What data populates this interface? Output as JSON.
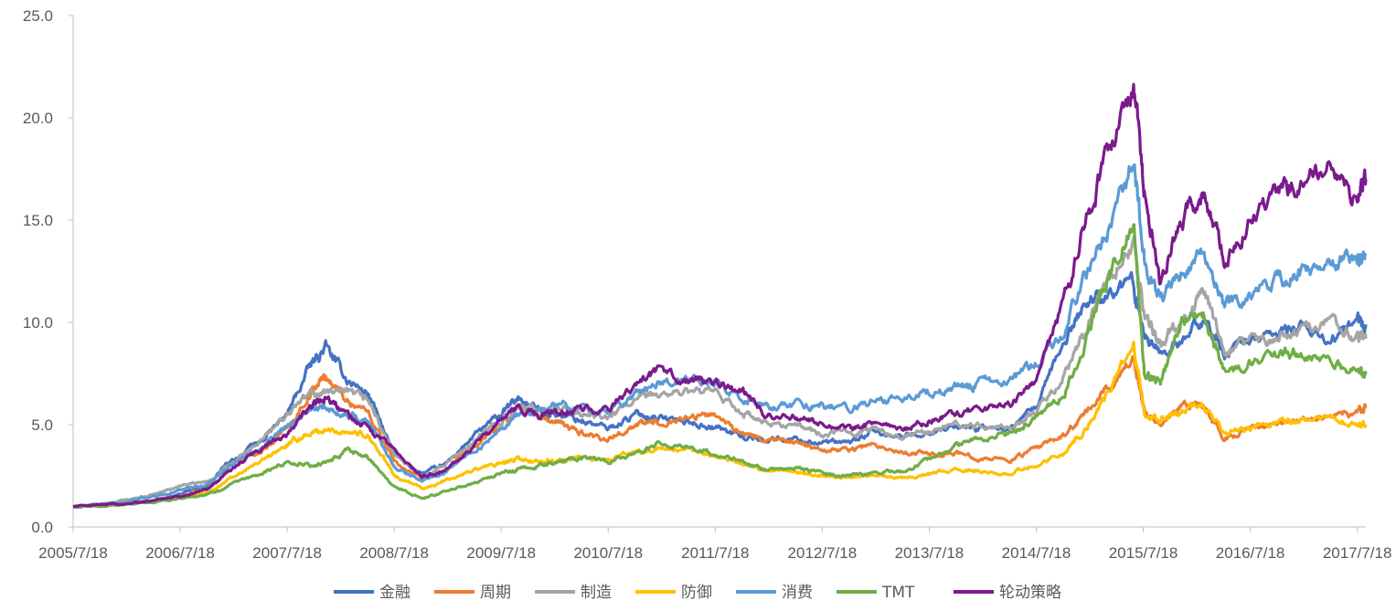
{
  "chart_data": {
    "type": "line",
    "title": "",
    "xlabel": "",
    "ylabel": "",
    "ylim": [
      0,
      25
    ],
    "y_ticks": [
      "0.0",
      "5.0",
      "10.0",
      "15.0",
      "20.0",
      "25.0"
    ],
    "x_ticks": [
      "2005/7/18",
      "2006/7/18",
      "2007/7/18",
      "2008/7/18",
      "2009/7/18",
      "2010/7/18",
      "2011/7/18",
      "2012/7/18",
      "2013/7/18",
      "2014/7/18",
      "2015/7/18",
      "2016/7/18",
      "2017/7/18"
    ],
    "x_tick_years": [
      2005.54,
      2006.54,
      2007.54,
      2008.54,
      2009.54,
      2010.54,
      2011.54,
      2012.54,
      2013.54,
      2014.54,
      2015.54,
      2016.54,
      2017.54
    ],
    "xlim": [
      2005.54,
      2017.62
    ],
    "grid": false,
    "legend_position": "bottom",
    "x": [
      2005.54,
      2005.8,
      2006.0,
      2006.3,
      2006.54,
      2006.8,
      2007.0,
      2007.3,
      2007.54,
      2007.75,
      2007.9,
      2008.1,
      2008.3,
      2008.54,
      2008.8,
      2009.0,
      2009.3,
      2009.54,
      2009.7,
      2009.9,
      2010.1,
      2010.3,
      2010.54,
      2010.8,
      2011.0,
      2011.3,
      2011.54,
      2011.8,
      2012.0,
      2012.3,
      2012.54,
      2012.8,
      2013.0,
      2013.3,
      2013.54,
      2013.8,
      2014.0,
      2014.3,
      2014.54,
      2014.8,
      2015.0,
      2015.2,
      2015.45,
      2015.55,
      2015.7,
      2015.9,
      2016.1,
      2016.3,
      2016.54,
      2016.8,
      2017.0,
      2017.3,
      2017.54,
      2017.62
    ],
    "series": [
      {
        "name": "金融",
        "color": "#4472C4",
        "values": [
          1.0,
          1.1,
          1.2,
          1.3,
          1.6,
          2.0,
          3.2,
          4.2,
          5.5,
          7.8,
          8.8,
          7.2,
          6.5,
          3.5,
          2.6,
          3.0,
          4.5,
          5.5,
          6.3,
          5.7,
          5.5,
          5.2,
          4.8,
          5.5,
          5.4,
          5.1,
          4.9,
          4.4,
          4.3,
          4.3,
          4.1,
          4.1,
          4.6,
          4.4,
          4.7,
          4.9,
          4.8,
          4.8,
          5.8,
          9.0,
          11.0,
          11.5,
          11.8,
          9.5,
          8.5,
          9.0,
          10.2,
          8.5,
          9.2,
          9.5,
          9.7,
          9.2,
          10.0,
          9.9
        ]
      },
      {
        "name": "周期",
        "color": "#ED7D31",
        "values": [
          1.0,
          1.1,
          1.1,
          1.3,
          1.5,
          1.9,
          2.8,
          3.8,
          4.8,
          6.5,
          7.4,
          6.2,
          5.6,
          3.2,
          2.3,
          2.7,
          4.0,
          5.0,
          5.8,
          5.4,
          5.0,
          4.6,
          4.3,
          5.0,
          5.1,
          5.4,
          5.5,
          4.6,
          4.2,
          4.2,
          3.8,
          3.8,
          4.0,
          3.7,
          3.6,
          3.6,
          3.4,
          3.3,
          3.8,
          4.5,
          5.5,
          6.8,
          8.2,
          5.8,
          5.0,
          5.8,
          6.0,
          4.3,
          4.8,
          5.0,
          5.3,
          5.4,
          5.6,
          5.8
        ]
      },
      {
        "name": "制造",
        "color": "#A5A5A5",
        "values": [
          1.0,
          1.1,
          1.3,
          1.6,
          2.0,
          2.2,
          3.0,
          4.2,
          5.5,
          6.5,
          6.6,
          6.5,
          6.2,
          3.5,
          2.5,
          3.0,
          4.3,
          5.2,
          5.8,
          5.7,
          5.8,
          5.5,
          5.3,
          6.2,
          6.5,
          6.6,
          6.5,
          5.6,
          5.0,
          5.0,
          4.5,
          4.6,
          4.8,
          4.4,
          4.7,
          5.0,
          4.9,
          4.8,
          5.6,
          7.3,
          9.5,
          12.0,
          14.0,
          10.5,
          9.0,
          10.3,
          11.5,
          8.5,
          9.0,
          9.3,
          9.6,
          10.2,
          9.2,
          9.2
        ]
      },
      {
        "name": "防御",
        "color": "#FFC000",
        "values": [
          1.0,
          1.1,
          1.1,
          1.3,
          1.5,
          1.7,
          2.3,
          3.2,
          4.0,
          4.6,
          4.7,
          4.7,
          4.5,
          2.5,
          1.9,
          2.2,
          2.8,
          3.1,
          3.3,
          3.2,
          3.2,
          3.4,
          3.3,
          3.7,
          3.8,
          3.7,
          3.5,
          3.1,
          2.8,
          2.7,
          2.5,
          2.4,
          2.6,
          2.4,
          2.6,
          2.8,
          2.7,
          2.6,
          3.1,
          3.6,
          4.8,
          6.5,
          8.8,
          5.5,
          5.2,
          5.6,
          6.0,
          4.5,
          4.8,
          5.1,
          5.2,
          5.3,
          5.0,
          5.0
        ]
      },
      {
        "name": "消费",
        "color": "#5B9BD5",
        "values": [
          1.0,
          1.1,
          1.2,
          1.5,
          1.8,
          2.1,
          3.0,
          4.0,
          5.0,
          5.7,
          5.8,
          5.5,
          5.2,
          3.0,
          2.3,
          2.7,
          3.8,
          4.6,
          5.4,
          5.6,
          6.0,
          5.8,
          5.6,
          6.5,
          7.0,
          7.2,
          7.0,
          6.4,
          5.8,
          6.0,
          5.9,
          5.8,
          6.1,
          6.2,
          6.6,
          6.9,
          7.0,
          7.2,
          8.0,
          9.5,
          12.5,
          14.0,
          18.0,
          13.0,
          11.0,
          12.5,
          13.3,
          10.8,
          11.5,
          12.0,
          12.5,
          13.0,
          13.2,
          13.3
        ]
      },
      {
        "name": "TMT",
        "color": "#70AD47",
        "values": [
          1.0,
          1.0,
          1.1,
          1.2,
          1.4,
          1.6,
          2.0,
          2.6,
          3.2,
          3.0,
          3.1,
          3.7,
          3.4,
          2.0,
          1.4,
          1.7,
          2.2,
          2.6,
          2.8,
          3.0,
          3.2,
          3.4,
          3.2,
          3.6,
          4.0,
          3.9,
          3.6,
          3.2,
          2.8,
          2.9,
          2.6,
          2.5,
          2.7,
          2.7,
          3.3,
          4.0,
          4.3,
          4.6,
          5.3,
          6.5,
          9.0,
          12.0,
          15.0,
          7.5,
          7.0,
          10.0,
          10.5,
          7.5,
          8.0,
          8.3,
          8.5,
          8.0,
          7.5,
          7.6
        ]
      },
      {
        "name": "轮动策略",
        "color": "#7B1A8C",
        "values": [
          1.0,
          1.1,
          1.1,
          1.3,
          1.5,
          1.9,
          2.8,
          3.8,
          4.6,
          5.8,
          6.3,
          5.5,
          4.7,
          3.8,
          2.4,
          2.8,
          4.0,
          5.2,
          5.8,
          5.5,
          5.6,
          5.8,
          5.8,
          6.8,
          7.5,
          7.2,
          7.0,
          6.6,
          5.4,
          5.4,
          5.0,
          4.8,
          5.0,
          4.8,
          5.2,
          5.6,
          5.7,
          6.0,
          7.2,
          11.0,
          15.0,
          18.0,
          21.5,
          16.5,
          12.0,
          15.0,
          16.5,
          13.0,
          15.0,
          16.2,
          17.0,
          17.5,
          16.0,
          17.0
        ]
      }
    ]
  }
}
